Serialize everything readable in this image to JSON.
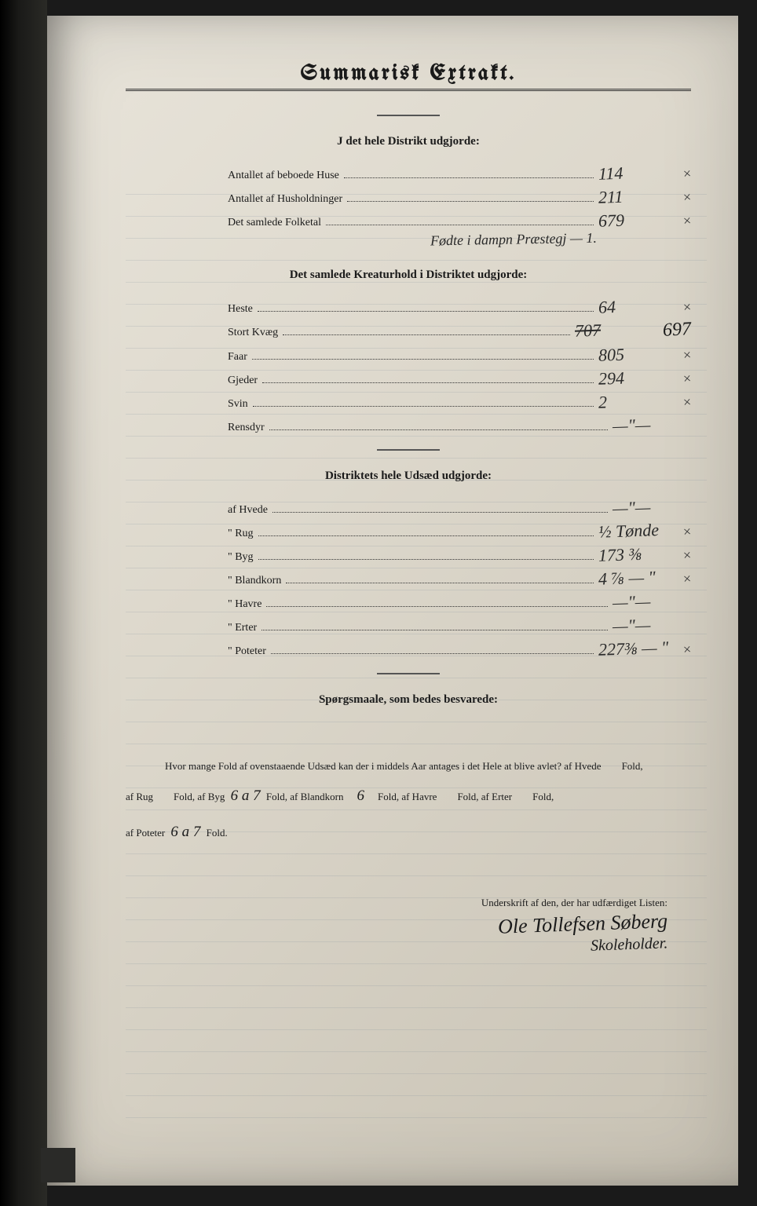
{
  "title": "Summarisk Extrakt.",
  "sections": {
    "district": {
      "heading": "J det hele Distrikt udgjorde:",
      "rows": [
        {
          "label": "Antallet af beboede Huse",
          "value": "114",
          "mark": "×"
        },
        {
          "label": "Antallet af Husholdninger",
          "value": "211",
          "mark": "×"
        },
        {
          "label": "Det samlede Folketal",
          "value": "679",
          "mark": "×"
        }
      ],
      "annotation": "Fødte i dampn Præstegj — 1."
    },
    "livestock": {
      "heading": "Det samlede Kreaturhold i Distriktet udgjorde:",
      "rows": [
        {
          "label": "Heste",
          "value": "64",
          "mark": "×"
        },
        {
          "label": "Stort Kvæg",
          "value": "707",
          "strike": true,
          "correction": "697",
          "mark": ""
        },
        {
          "label": "Faar",
          "value": "805",
          "mark": "×"
        },
        {
          "label": "Gjeder",
          "value": "294",
          "mark": "×"
        },
        {
          "label": "Svin",
          "value": "2",
          "mark": "×"
        },
        {
          "label": "Rensdyr",
          "value": "—\"—",
          "mark": ""
        }
      ]
    },
    "seed": {
      "heading": "Distriktets hele Udsæd udgjorde:",
      "rows": [
        {
          "label": "af Hvede",
          "value": "—\"—",
          "mark": ""
        },
        {
          "label": "\"  Rug",
          "value": "½ Tønde",
          "mark": "×"
        },
        {
          "label": "\"  Byg",
          "value": "173 ⅜",
          "mark": "×"
        },
        {
          "label": "\"  Blandkorn",
          "value": "4 ⅞ — \"",
          "mark": "×"
        },
        {
          "label": "\"  Havre",
          "value": "—\"—",
          "mark": ""
        },
        {
          "label": "\"  Erter",
          "value": "—\"—",
          "mark": ""
        },
        {
          "label": "\"  Poteter",
          "value": "227⅜ — \"",
          "mark": "×"
        }
      ]
    }
  },
  "questions": {
    "heading": "Spørgsmaale, som bedes besvarede:",
    "line1_a": "Hvor mange Fold af ovenstaaende Udsæd kan der i middels Aar antages i det Hele at blive avlet?   af Hvede",
    "line1_b": "Fold,",
    "line2_a": "af Rug",
    "line2_b": "Fold, af Byg",
    "byg_val": "6 a 7",
    "line2_c": "Fold, af Blandkorn",
    "bland_val": "6",
    "line2_d": "Fold, af Havre",
    "line2_e": "Fold, af Erter",
    "line2_f": "Fold,",
    "line3_a": "af Poteter",
    "pot_val": "6 a 7",
    "line3_b": "Fold."
  },
  "signature": {
    "label": "Underskrift af den, der har udfærdiget Listen:",
    "name": "Ole Tollefsen Søberg",
    "title": "Skoleholder."
  },
  "colors": {
    "paper_light": "#e8e4da",
    "paper_dark": "#c8c2b4",
    "ink": "#1a1a1a",
    "background": "#1a1a1a",
    "ledger_line": "rgba(100,120,140,0.15)"
  }
}
